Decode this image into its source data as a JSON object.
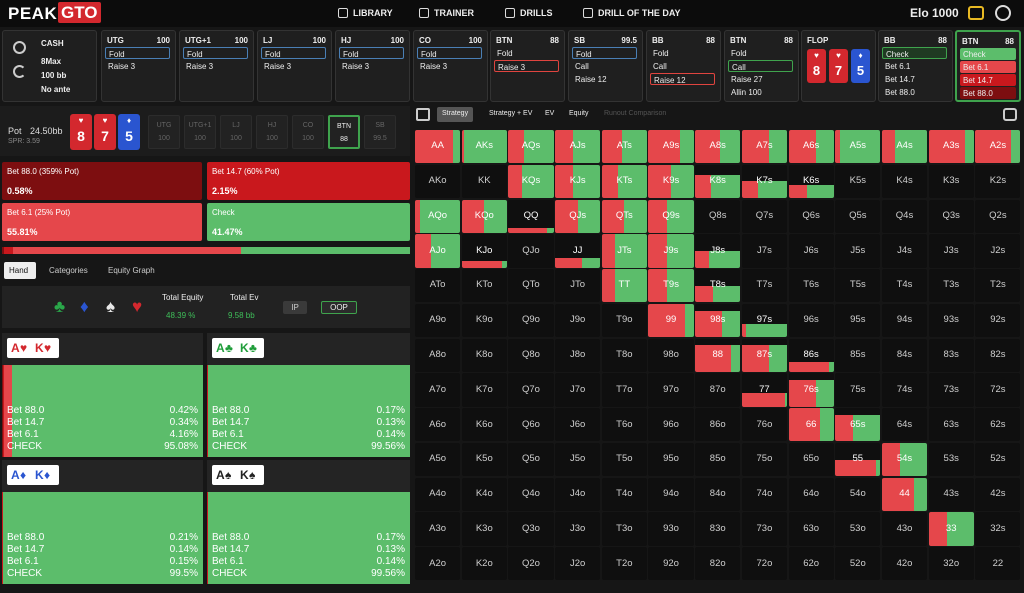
{
  "nav": {
    "logo_a": "PEAK",
    "logo_b": "GTO",
    "items": [
      "LIBRARY",
      "TRAINER",
      "DRILLS",
      "DRILL OF THE DAY"
    ],
    "elo": "Elo 1000"
  },
  "settings": [
    "CASH",
    "8Max",
    "100 bb",
    "No ante"
  ],
  "actions": [
    {
      "pos": "UTG",
      "stack": "100",
      "options": [
        {
          "label": "Fold",
          "outline": "#4a7fb5"
        },
        {
          "label": "Raise 3"
        }
      ]
    },
    {
      "pos": "UTG+1",
      "stack": "100",
      "options": [
        {
          "label": "Fold",
          "outline": "#4a7fb5"
        },
        {
          "label": "Raise 3"
        }
      ]
    },
    {
      "pos": "LJ",
      "stack": "100",
      "options": [
        {
          "label": "Fold",
          "outline": "#4a7fb5"
        },
        {
          "label": "Raise 3"
        }
      ]
    },
    {
      "pos": "HJ",
      "stack": "100",
      "options": [
        {
          "label": "Fold",
          "outline": "#4a7fb5"
        },
        {
          "label": "Raise 3"
        }
      ]
    },
    {
      "pos": "CO",
      "stack": "100",
      "options": [
        {
          "label": "Fold",
          "outline": "#4a7fb5"
        },
        {
          "label": "Raise 3"
        }
      ]
    },
    {
      "pos": "BTN",
      "stack": "88",
      "options": [
        {
          "label": "Fold"
        },
        {
          "label": "Raise 3",
          "outline": "#e0443f"
        }
      ]
    },
    {
      "pos": "SB",
      "stack": "99.5",
      "options": [
        {
          "label": "Fold",
          "outline": "#4a7fb5"
        },
        {
          "label": "Call"
        },
        {
          "label": "Raise 12"
        }
      ]
    },
    {
      "pos": "BB",
      "stack": "88",
      "options": [
        {
          "label": "Fold"
        },
        {
          "label": "Call"
        },
        {
          "label": "Raise 12",
          "outline": "#e0443f"
        }
      ]
    },
    {
      "pos": "BTN",
      "stack": "88",
      "options": [
        {
          "label": "Fold"
        },
        {
          "label": "Call",
          "outline": "#3fa34d"
        },
        {
          "label": "Raise 27"
        },
        {
          "label": "Allin 100"
        }
      ]
    },
    {
      "pos": "FLOP",
      "cards": [
        {
          "rank": "8",
          "suit": "♥",
          "color": "#d3282e"
        },
        {
          "rank": "7",
          "suit": "♥",
          "color": "#d3282e"
        },
        {
          "rank": "5",
          "suit": "♦",
          "color": "#2a55d0"
        }
      ]
    },
    {
      "pos": "BB",
      "stack": "88",
      "options": [
        {
          "label": "Check",
          "outline": "#3fa34d",
          "fill": "#1f3a22"
        },
        {
          "label": "Bet 6.1"
        },
        {
          "label": "Bet 14.7"
        },
        {
          "label": "Bet 88.0"
        }
      ]
    },
    {
      "pos": "BTN",
      "stack": "88",
      "active": true,
      "options": [
        {
          "label": "Check",
          "fill": "#5cbd6b"
        },
        {
          "label": "Bet 6.1",
          "fill": "#e5474b"
        },
        {
          "label": "Bet 14.7",
          "fill": "#c9181d"
        },
        {
          "label": "Bet 88.0",
          "fill": "#7d0e10"
        }
      ]
    }
  ],
  "pot": {
    "label": "Pot",
    "value": "24.50bb",
    "spr": "SPR: 3.59"
  },
  "seats": [
    {
      "pos": "UTG",
      "stack": "100"
    },
    {
      "pos": "UTG+1",
      "stack": "100"
    },
    {
      "pos": "LJ",
      "stack": "100"
    },
    {
      "pos": "HJ",
      "stack": "100"
    },
    {
      "pos": "CO",
      "stack": "100"
    },
    {
      "pos": "BTN",
      "stack": "88",
      "active": true
    },
    {
      "pos": "SB",
      "stack": "99.5"
    }
  ],
  "strategy": [
    {
      "label": "Bet 88.0 (359% Pot)",
      "value": 0.58,
      "value_label": "0.58%",
      "color": "#7d0e10"
    },
    {
      "label": "Bet 14.7 (60% Pot)",
      "value": 2.15,
      "value_label": "2.15%",
      "color": "#c9181d"
    },
    {
      "label": "Bet 6.1 (25% Pot)",
      "value": 55.81,
      "value_label": "55.81%",
      "color": "#e5474b"
    },
    {
      "label": "Check",
      "value": 41.47,
      "value_label": "41.47%",
      "color": "#5cbd6b"
    }
  ],
  "tabs": [
    "Hand",
    "Categories",
    "Equity Graph"
  ],
  "filters": {
    "suits": [
      {
        "symbol": "♣",
        "color": "#2aa84a"
      },
      {
        "symbol": "♦",
        "color": "#2a55d0"
      },
      {
        "symbol": "♠",
        "color": "#e8e8e8"
      },
      {
        "symbol": "♥",
        "color": "#d3282e"
      }
    ],
    "equity_label": "Total Equity",
    "equity": "48.39 %",
    "ev_label": "Total Ev",
    "ev": "9.58 bb",
    "ip": "IP",
    "oop": "OOP"
  },
  "combos": [
    {
      "cards": [
        {
          "rank": "A",
          "suit": "♥"
        },
        {
          "rank": "K",
          "suit": "♥"
        }
      ],
      "color": "#d3282e",
      "rows": [
        {
          "label": "Bet 88.0",
          "value": 0.42,
          "value_label": "0.42%",
          "color": "#7d0e10"
        },
        {
          "label": "Bet 14.7",
          "value": 0.34,
          "value_label": "0.34%",
          "color": "#c9181d"
        },
        {
          "label": "Bet 6.1",
          "value": 4.16,
          "value_label": "4.16%",
          "color": "#e5474b"
        },
        {
          "label": "CHECK",
          "value": 95.08,
          "value_label": "95.08%",
          "color": "#5cbd6b"
        }
      ]
    },
    {
      "cards": [
        {
          "rank": "A",
          "suit": "♣"
        },
        {
          "rank": "K",
          "suit": "♣"
        }
      ],
      "color": "#1f9d3a",
      "rows": [
        {
          "label": "Bet 88.0",
          "value": 0.17,
          "value_label": "0.17%",
          "color": "#7d0e10"
        },
        {
          "label": "Bet 14.7",
          "value": 0.13,
          "value_label": "0.13%",
          "color": "#c9181d"
        },
        {
          "label": "Bet 6.1",
          "value": 0.14,
          "value_label": "0.14%",
          "color": "#e5474b"
        },
        {
          "label": "CHECK",
          "value": 99.56,
          "value_label": "99.56%",
          "color": "#5cbd6b"
        }
      ]
    },
    {
      "cards": [
        {
          "rank": "A",
          "suit": "♦"
        },
        {
          "rank": "K",
          "suit": "♦"
        }
      ],
      "color": "#2a55d0",
      "rows": [
        {
          "label": "Bet 88.0",
          "value": 0.21,
          "value_label": "0.21%",
          "color": "#7d0e10"
        },
        {
          "label": "Bet 14.7",
          "value": 0.14,
          "value_label": "0.14%",
          "color": "#c9181d"
        },
        {
          "label": "Bet 6.1",
          "value": 0.15,
          "value_label": "0.15%",
          "color": "#e5474b"
        },
        {
          "label": "CHECK",
          "value": 99.5,
          "value_label": "99.5%",
          "color": "#5cbd6b"
        }
      ]
    },
    {
      "cards": [
        {
          "rank": "A",
          "suit": "♠"
        },
        {
          "rank": "K",
          "suit": "♠"
        }
      ],
      "color": "#222222",
      "rows": [
        {
          "label": "Bet 88.0",
          "value": 0.17,
          "value_label": "0.17%",
          "color": "#7d0e10"
        },
        {
          "label": "Bet 14.7",
          "value": 0.13,
          "value_label": "0.13%",
          "color": "#c9181d"
        },
        {
          "label": "Bet 6.1",
          "value": 0.14,
          "value_label": "0.14%",
          "color": "#e5474b"
        },
        {
          "label": "CHECK",
          "value": 99.56,
          "value_label": "99.56%",
          "color": "#5cbd6b"
        }
      ]
    }
  ],
  "view_tabs": [
    "Strategy",
    "Strategy + EV",
    "EV",
    "Equity",
    "Runout Comparison"
  ],
  "matrix": {
    "bet_color": "#e5474b",
    "check_color": "#5cbd6b",
    "rows": [
      [
        "AA",
        "AKs",
        "AQs",
        "AJs",
        "ATs",
        "A9s",
        "A8s",
        "A7s",
        "A6s",
        "A5s",
        "A4s",
        "A3s",
        "A2s"
      ],
      [
        "AKo",
        "KK",
        "KQs",
        "KJs",
        "KTs",
        "K9s",
        "K8s",
        "K7s",
        "K6s",
        "K5s",
        "K4s",
        "K3s",
        "K2s"
      ],
      [
        "AQo",
        "KQo",
        "QQ",
        "QJs",
        "QTs",
        "Q9s",
        "Q8s",
        "Q7s",
        "Q6s",
        "Q5s",
        "Q4s",
        "Q3s",
        "Q2s"
      ],
      [
        "AJo",
        "KJo",
        "QJo",
        "JJ",
        "JTs",
        "J9s",
        "J8s",
        "J7s",
        "J6s",
        "J5s",
        "J4s",
        "J3s",
        "J2s"
      ],
      [
        "ATo",
        "KTo",
        "QTo",
        "JTo",
        "TT",
        "T9s",
        "T8s",
        "T7s",
        "T6s",
        "T5s",
        "T4s",
        "T3s",
        "T2s"
      ],
      [
        "A9o",
        "K9o",
        "Q9o",
        "J9o",
        "T9o",
        "99",
        "98s",
        "97s",
        "96s",
        "95s",
        "94s",
        "93s",
        "92s"
      ],
      [
        "A8o",
        "K8o",
        "Q8o",
        "J8o",
        "T8o",
        "98o",
        "88",
        "87s",
        "86s",
        "85s",
        "84s",
        "83s",
        "82s"
      ],
      [
        "A7o",
        "K7o",
        "Q7o",
        "J7o",
        "T7o",
        "97o",
        "87o",
        "77",
        "76s",
        "75s",
        "74s",
        "73s",
        "72s"
      ],
      [
        "A6o",
        "K6o",
        "Q6o",
        "J6o",
        "T6o",
        "96o",
        "86o",
        "76o",
        "66",
        "65s",
        "64s",
        "63s",
        "62s"
      ],
      [
        "A5o",
        "K5o",
        "Q5o",
        "J5o",
        "T5o",
        "95o",
        "85o",
        "75o",
        "65o",
        "55",
        "54s",
        "53s",
        "52s"
      ],
      [
        "A4o",
        "K4o",
        "Q4o",
        "J4o",
        "T4o",
        "94o",
        "84o",
        "74o",
        "64o",
        "54o",
        "44",
        "43s",
        "42s"
      ],
      [
        "A3o",
        "K3o",
        "Q3o",
        "J3o",
        "T3o",
        "93o",
        "83o",
        "73o",
        "63o",
        "53o",
        "43o",
        "33",
        "32s"
      ],
      [
        "A2o",
        "K2o",
        "Q2o",
        "J2o",
        "T2o",
        "92o",
        "82o",
        "72o",
        "62o",
        "52o",
        "42o",
        "32o",
        "22"
      ]
    ],
    "freq": [
      [
        [
          1,
          0.85
        ],
        [
          1,
          0.05
        ],
        [
          1,
          0.35
        ],
        [
          1,
          0.4
        ],
        [
          1,
          0.45
        ],
        [
          1,
          0.7
        ],
        [
          1,
          0.55
        ],
        [
          1,
          0.6
        ],
        [
          1,
          0.6
        ],
        [
          1,
          0.1
        ],
        [
          1,
          0.3
        ],
        [
          1,
          0.8
        ],
        [
          1,
          0.8
        ]
      ],
      [
        null,
        null,
        [
          1,
          0.3
        ],
        [
          1,
          0.4
        ],
        [
          1,
          0.35
        ],
        [
          1,
          0.5
        ],
        [
          0.7,
          0.35
        ],
        [
          0.5,
          0.35
        ],
        [
          0.4,
          0.4
        ],
        null,
        null,
        null,
        null
      ],
      [
        [
          1,
          0.1
        ],
        [
          1,
          0.5
        ],
        [
          0.15,
          0.85
        ],
        [
          1,
          0.5
        ],
        [
          1,
          0.5
        ],
        [
          1,
          0.4
        ],
        null,
        null,
        null,
        null,
        null,
        null,
        null
      ],
      [
        [
          1,
          0.35
        ],
        [
          0.2,
          0.9
        ],
        null,
        [
          0.3,
          0.6
        ],
        [
          1,
          0.3
        ],
        [
          1,
          0.4
        ],
        [
          0.5,
          0.3
        ],
        null,
        null,
        null,
        null,
        null,
        null
      ],
      [
        null,
        null,
        null,
        null,
        [
          1,
          0.3
        ],
        [
          1,
          0.4
        ],
        [
          0.5,
          0.4
        ],
        null,
        null,
        null,
        null,
        null,
        null
      ],
      [
        null,
        null,
        null,
        null,
        null,
        [
          1,
          0.8
        ],
        [
          0.8,
          0.6
        ],
        [
          0.4,
          0.1
        ],
        null,
        null,
        null,
        null,
        null
      ],
      [
        null,
        null,
        null,
        null,
        null,
        null,
        [
          0.8,
          0.8
        ],
        [
          0.8,
          0.6
        ],
        [
          0.3,
          0.9
        ],
        null,
        null,
        null,
        null
      ],
      [
        null,
        null,
        null,
        null,
        null,
        null,
        null,
        [
          0.4,
          0.95
        ],
        [
          0.8,
          0.6
        ],
        null,
        null,
        null,
        null
      ],
      [
        null,
        null,
        null,
        null,
        null,
        null,
        null,
        null,
        [
          1,
          0.7
        ],
        [
          0.8,
          0.4
        ],
        null,
        null,
        null
      ],
      [
        null,
        null,
        null,
        null,
        null,
        null,
        null,
        null,
        null,
        [
          0.5,
          0.9
        ],
        [
          1,
          0.4
        ],
        null,
        null
      ],
      [
        null,
        null,
        null,
        null,
        null,
        null,
        null,
        null,
        null,
        null,
        [
          1,
          0.7
        ],
        null,
        null
      ],
      [
        null,
        null,
        null,
        null,
        null,
        null,
        null,
        null,
        null,
        null,
        null,
        [
          1,
          0.4
        ],
        null
      ],
      [
        null,
        null,
        null,
        null,
        null,
        null,
        null,
        null,
        null,
        null,
        null,
        null,
        null
      ]
    ]
  }
}
